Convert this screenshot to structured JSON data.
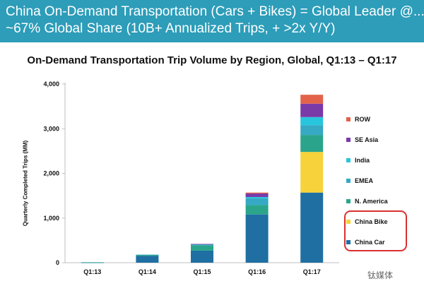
{
  "banner": {
    "line1": "China On-Demand Transportation (Cars + Bikes) = Global Leader @...",
    "line2": "~67% Global Share (10B+ Annualized Trips, + >2x Y/Y)",
    "background": "#2d9db9"
  },
  "watermark": "钛媒体",
  "chart_data": {
    "type": "bar",
    "stacked": true,
    "title": "On-Demand Transportation Trip Volume by Region, Global, Q1:13 – Q1:17",
    "xlabel": "",
    "ylabel": "Quarterly Completed Trips (MM)",
    "ylim": [
      0,
      4000
    ],
    "yticks": [
      0,
      1000,
      2000,
      3000,
      4000
    ],
    "ytick_labels": [
      "0",
      "1,000",
      "2,000",
      "3,000",
      "4,000"
    ],
    "grid": false,
    "legend_position": "right",
    "highlighted_legend_entries": [
      "China Bike",
      "China Car"
    ],
    "categories": [
      "Q1:13",
      "Q1:14",
      "Q1:15",
      "Q1:16",
      "Q1:17"
    ],
    "series": [
      {
        "name": "China Car",
        "color": "#1f6fa3",
        "values": [
          5,
          150,
          270,
          1080,
          1570
        ]
      },
      {
        "name": "China Bike",
        "color": "#f7d23a",
        "values": [
          0,
          0,
          0,
          0,
          910
        ]
      },
      {
        "name": "N. America",
        "color": "#2aa58b",
        "values": [
          5,
          25,
          120,
          210,
          380
        ]
      },
      {
        "name": "EMEA",
        "color": "#36a9c4",
        "values": [
          0,
          5,
          20,
          150,
          220
        ]
      },
      {
        "name": "India",
        "color": "#27c6dd",
        "values": [
          0,
          0,
          5,
          30,
          180
        ]
      },
      {
        "name": "SE Asia",
        "color": "#7a3aa8",
        "values": [
          0,
          0,
          5,
          80,
          300
        ]
      },
      {
        "name": "ROW",
        "color": "#e2634a",
        "values": [
          0,
          0,
          0,
          20,
          200
        ]
      }
    ],
    "legend_order": [
      "ROW",
      "SE Asia",
      "India",
      "EMEA",
      "N. America",
      "China Bike",
      "China Car"
    ]
  }
}
